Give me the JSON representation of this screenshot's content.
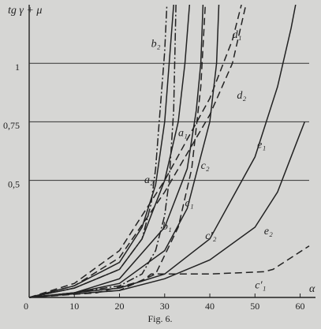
{
  "chart_data": {
    "type": "line",
    "y_label": "tg γ + μ",
    "x_label": "α",
    "caption": "Fig. 6.",
    "xlim": [
      0,
      62
    ],
    "ylim": [
      0,
      1.25
    ],
    "xticks": [
      0,
      10,
      20,
      30,
      40,
      50,
      60
    ],
    "yticks": [
      {
        "value": 0.5,
        "label": "0,5"
      },
      {
        "value": 0.75,
        "label": "0,75"
      },
      1
    ],
    "grid": true,
    "series": [
      {
        "name": "b₂",
        "color": "#222",
        "dash": "dashdot",
        "x": [
          0,
          10,
          20,
          25,
          27,
          28,
          29,
          30,
          30.5
        ],
        "values": [
          0,
          0.04,
          0.12,
          0.25,
          0.4,
          0.55,
          0.8,
          1.05,
          1.25
        ]
      },
      {
        "name": "b₁",
        "color": "#222",
        "dash": "dashdot",
        "x": [
          0,
          10,
          20,
          25,
          28,
          30,
          31,
          32,
          32.5
        ],
        "values": [
          0,
          0.02,
          0.05,
          0.1,
          0.2,
          0.35,
          0.5,
          0.8,
          1.25
        ]
      },
      {
        "name": "a₂",
        "color": "#222",
        "dash": "solid",
        "x": [
          0,
          10,
          20,
          25,
          28,
          30,
          31,
          32
        ],
        "values": [
          0,
          0.05,
          0.15,
          0.3,
          0.48,
          0.75,
          1.0,
          1.25
        ]
      },
      {
        "name": "a₁",
        "color": "#222",
        "dash": "solid",
        "x": [
          0,
          10,
          20,
          25,
          30,
          33,
          34.5,
          35.5
        ],
        "values": [
          0,
          0.04,
          0.12,
          0.25,
          0.5,
          0.75,
          1.0,
          1.25
        ]
      },
      {
        "name": "c₁",
        "color": "#222",
        "dash": "solid",
        "x": [
          0,
          10,
          20,
          30,
          35,
          37,
          38,
          38.5
        ],
        "values": [
          0,
          0.02,
          0.08,
          0.3,
          0.55,
          0.8,
          1.0,
          1.25
        ]
      },
      {
        "name": "c₂",
        "color": "#222",
        "dash": "solid",
        "x": [
          0,
          10,
          20,
          30,
          35,
          40,
          41.5,
          42
        ],
        "values": [
          0,
          0.02,
          0.06,
          0.2,
          0.38,
          0.75,
          1.0,
          1.25
        ]
      },
      {
        "name": "c′₂",
        "color": "#222",
        "dash": "dashed",
        "x": [
          0,
          20,
          28,
          33,
          36,
          38,
          39
        ],
        "values": [
          0,
          0.03,
          0.1,
          0.3,
          0.55,
          0.9,
          1.25
        ]
      },
      {
        "name": "d₁",
        "color": "#222",
        "dash": "dashed",
        "x": [
          0,
          10,
          20,
          30,
          40,
          45,
          47
        ],
        "values": [
          0,
          0.06,
          0.2,
          0.5,
          0.85,
          1.1,
          1.25
        ]
      },
      {
        "name": "d₂",
        "color": "#222",
        "dash": "dashed",
        "x": [
          0,
          10,
          20,
          30,
          40,
          45,
          48
        ],
        "values": [
          0,
          0.05,
          0.17,
          0.45,
          0.78,
          1.0,
          1.25
        ]
      },
      {
        "name": "e₁",
        "color": "#222",
        "dash": "solid",
        "x": [
          0,
          20,
          30,
          40,
          50,
          55,
          58,
          59
        ],
        "values": [
          0,
          0.04,
          0.1,
          0.25,
          0.6,
          0.9,
          1.15,
          1.25
        ]
      },
      {
        "name": "e₂",
        "color": "#222",
        "dash": "solid",
        "x": [
          0,
          20,
          30,
          40,
          50,
          55,
          60,
          61
        ],
        "values": [
          0,
          0.03,
          0.08,
          0.16,
          0.3,
          0.45,
          0.7,
          0.75
        ]
      },
      {
        "name": "c′₁",
        "color": "#222",
        "dash": "dashed",
        "x": [
          0,
          15,
          25,
          27,
          40,
          52,
          54,
          62
        ],
        "values": [
          0,
          0.02,
          0.07,
          0.1,
          0.1,
          0.11,
          0.12,
          0.22
        ]
      }
    ]
  }
}
